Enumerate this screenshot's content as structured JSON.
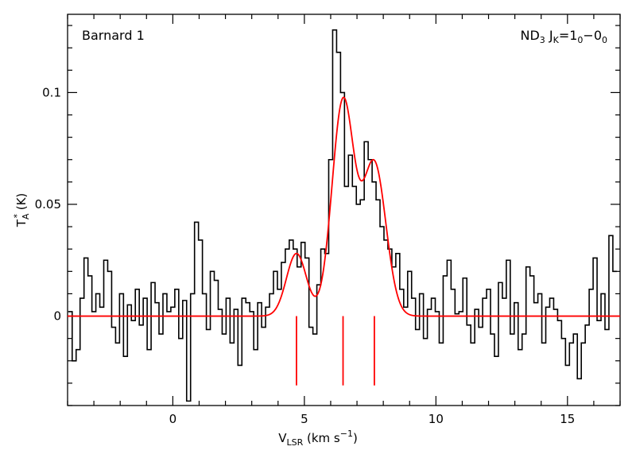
{
  "chart_data": {
    "type": "line",
    "title": "",
    "annotation_left": "Barnard 1",
    "annotation_right": {
      "main": "ND",
      "sub1": "3",
      "mid": " J",
      "sub2": "K",
      "eq": "=1",
      "sub3": "0",
      "dash": "−0",
      "sub4": "0"
    },
    "xlabel": {
      "main": "V",
      "sub": "LSR",
      "rest": " (km s",
      "sup": "−1",
      "close": ")"
    },
    "ylabel": {
      "main": "T",
      "sub": "A",
      "sup": "*",
      "rest": " (K)"
    },
    "xlim": [
      -4,
      17
    ],
    "ylim": [
      -0.04,
      0.135
    ],
    "x_ticks": [
      0,
      5,
      10,
      15
    ],
    "x_tick_labels": [
      "0",
      "5",
      "10",
      "15"
    ],
    "y_ticks": [
      0,
      0.05,
      0.1
    ],
    "y_tick_labels": [
      "0",
      "0.05",
      "0.1"
    ],
    "grid": false,
    "series": [
      {
        "type": "step",
        "color": "#000000",
        "x": [
          -3.9,
          -3.75,
          -3.6,
          -3.45,
          -3.3,
          -3.15,
          -3.0,
          -2.85,
          -2.7,
          -2.55,
          -2.4,
          -2.25,
          -2.1,
          -1.95,
          -1.8,
          -1.65,
          -1.5,
          -1.35,
          -1.2,
          -1.05,
          -0.9,
          -0.75,
          -0.6,
          -0.45,
          -0.3,
          -0.15,
          0.0,
          0.15,
          0.3,
          0.45,
          0.6,
          0.75,
          0.9,
          1.05,
          1.2,
          1.35,
          1.5,
          1.65,
          1.8,
          1.95,
          2.1,
          2.25,
          2.4,
          2.55,
          2.7,
          2.85,
          3.0,
          3.15,
          3.3,
          3.45,
          3.6,
          3.75,
          3.9,
          4.05,
          4.2,
          4.35,
          4.5,
          4.65,
          4.8,
          4.95,
          5.1,
          5.25,
          5.4,
          5.55,
          5.7,
          5.85,
          6.0,
          6.15,
          6.3,
          6.45,
          6.6,
          6.75,
          6.9,
          7.05,
          7.2,
          7.35,
          7.5,
          7.65,
          7.8,
          7.95,
          8.1,
          8.25,
          8.4,
          8.55,
          8.7,
          8.85,
          9.0,
          9.15,
          9.3,
          9.45,
          9.6,
          9.75,
          9.9,
          10.05,
          10.2,
          10.35,
          10.5,
          10.65,
          10.8,
          10.95,
          11.1,
          11.25,
          11.4,
          11.55,
          11.7,
          11.85,
          12.0,
          12.15,
          12.3,
          12.45,
          12.6,
          12.75,
          12.9,
          13.05,
          13.2,
          13.35,
          13.5,
          13.65,
          13.8,
          13.95,
          14.1,
          14.25,
          14.4,
          14.55,
          14.7,
          14.85,
          15.0,
          15.15,
          15.3,
          15.45,
          15.6,
          15.75,
          15.9,
          16.05,
          16.2,
          16.35,
          16.5,
          16.65,
          16.8
        ],
        "y": [
          0.002,
          -0.02,
          -0.015,
          0.008,
          0.026,
          0.018,
          0.002,
          0.01,
          0.004,
          0.025,
          0.02,
          -0.005,
          -0.012,
          0.01,
          -0.018,
          0.005,
          -0.002,
          0.012,
          -0.004,
          0.008,
          -0.015,
          0.015,
          0.006,
          -0.008,
          0.01,
          0.002,
          0.004,
          0.012,
          -0.01,
          0.007,
          -0.038,
          0.01,
          0.042,
          0.034,
          0.01,
          -0.006,
          0.02,
          0.016,
          0.003,
          -0.008,
          0.008,
          -0.012,
          0.003,
          -0.022,
          0.008,
          0.006,
          0.002,
          -0.015,
          0.006,
          -0.005,
          0.004,
          0.01,
          0.02,
          0.012,
          0.024,
          0.03,
          0.034,
          0.03,
          0.022,
          0.033,
          0.026,
          -0.005,
          -0.008,
          0.014,
          0.03,
          0.028,
          0.07,
          0.128,
          0.118,
          0.1,
          0.058,
          0.072,
          0.058,
          0.05,
          0.052,
          0.078,
          0.07,
          0.06,
          0.052,
          0.04,
          0.034,
          0.03,
          0.022,
          0.028,
          0.012,
          0.004,
          0.02,
          0.008,
          -0.006,
          0.01,
          -0.01,
          0.003,
          0.008,
          0.002,
          -0.012,
          0.018,
          0.025,
          0.012,
          0.001,
          0.002,
          0.017,
          -0.004,
          -0.012,
          0.003,
          -0.005,
          0.008,
          0.012,
          -0.008,
          -0.018,
          0.015,
          0.008,
          0.025,
          -0.008,
          0.006,
          -0.015,
          -0.008,
          0.022,
          0.018,
          0.006,
          0.01,
          -0.012,
          0.004,
          0.008,
          0.003,
          -0.002,
          -0.01,
          -0.022,
          -0.012,
          -0.008,
          -0.028,
          -0.012,
          -0.004,
          0.012,
          0.026,
          -0.002,
          0.01,
          -0.006,
          0.036,
          0.02
        ]
      },
      {
        "type": "fit",
        "color": "#ff0000",
        "model": "sum of gaussians",
        "components": [
          {
            "center": 4.7,
            "amplitude": 0.028,
            "sigma": 0.38
          },
          {
            "center": 6.47,
            "amplitude": 0.096,
            "sigma": 0.42
          },
          {
            "center": 7.66,
            "amplitude": 0.068,
            "sigma": 0.44
          }
        ]
      }
    ],
    "markers": {
      "type": "vertical-lines",
      "color": "#ff0000",
      "x": [
        4.7,
        6.47,
        7.66
      ],
      "y_top": 0.0,
      "y_bottom": -0.031
    }
  }
}
